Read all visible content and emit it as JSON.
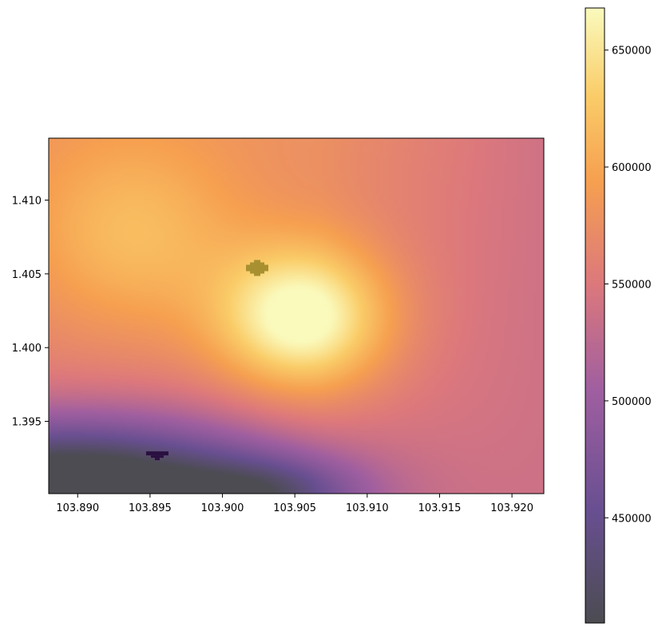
{
  "chart_data": {
    "type": "heatmap",
    "title": "",
    "xlabel": "",
    "ylabel": "",
    "xlim": [
      103.888,
      103.9222
    ],
    "ylim": [
      1.3901,
      1.4142
    ],
    "xticks": [
      103.89,
      103.895,
      103.9,
      103.905,
      103.91,
      103.915,
      103.92
    ],
    "xtick_labels": [
      "103.890",
      "103.895",
      "103.900",
      "103.905",
      "103.910",
      "103.915",
      "103.920"
    ],
    "yticks": [
      1.395,
      1.4,
      1.405,
      1.41
    ],
    "ytick_labels": [
      "1.395",
      "1.400",
      "1.405",
      "1.410"
    ],
    "colorbar": {
      "range": [
        405000,
        668000
      ],
      "ticks": [
        450000,
        500000,
        550000,
        600000,
        650000
      ],
      "tick_labels": [
        "450000",
        "500000",
        "550000",
        "600000",
        "650000"
      ],
      "colormap": "inferno-like (dark grey → purple → pink → orange → pale yellow), semi-transparent"
    },
    "field": {
      "description": "Smooth interpolated surface; peak near (103.9055, 1.4020), high ridge toward upper-left, minimum along bottom-left edge",
      "peak": {
        "x": 103.9055,
        "y": 1.402,
        "value": 665000
      },
      "min": {
        "x": 103.889,
        "y": 1.3905,
        "value": 405000
      }
    },
    "markers": [
      {
        "name": "high-pixel-cross",
        "x": 103.9024,
        "y": 1.4054,
        "color": "#a89030"
      },
      {
        "name": "low-pixel-mark",
        "x": 103.8955,
        "y": 1.3928,
        "color": "#2a0f40"
      }
    ]
  }
}
